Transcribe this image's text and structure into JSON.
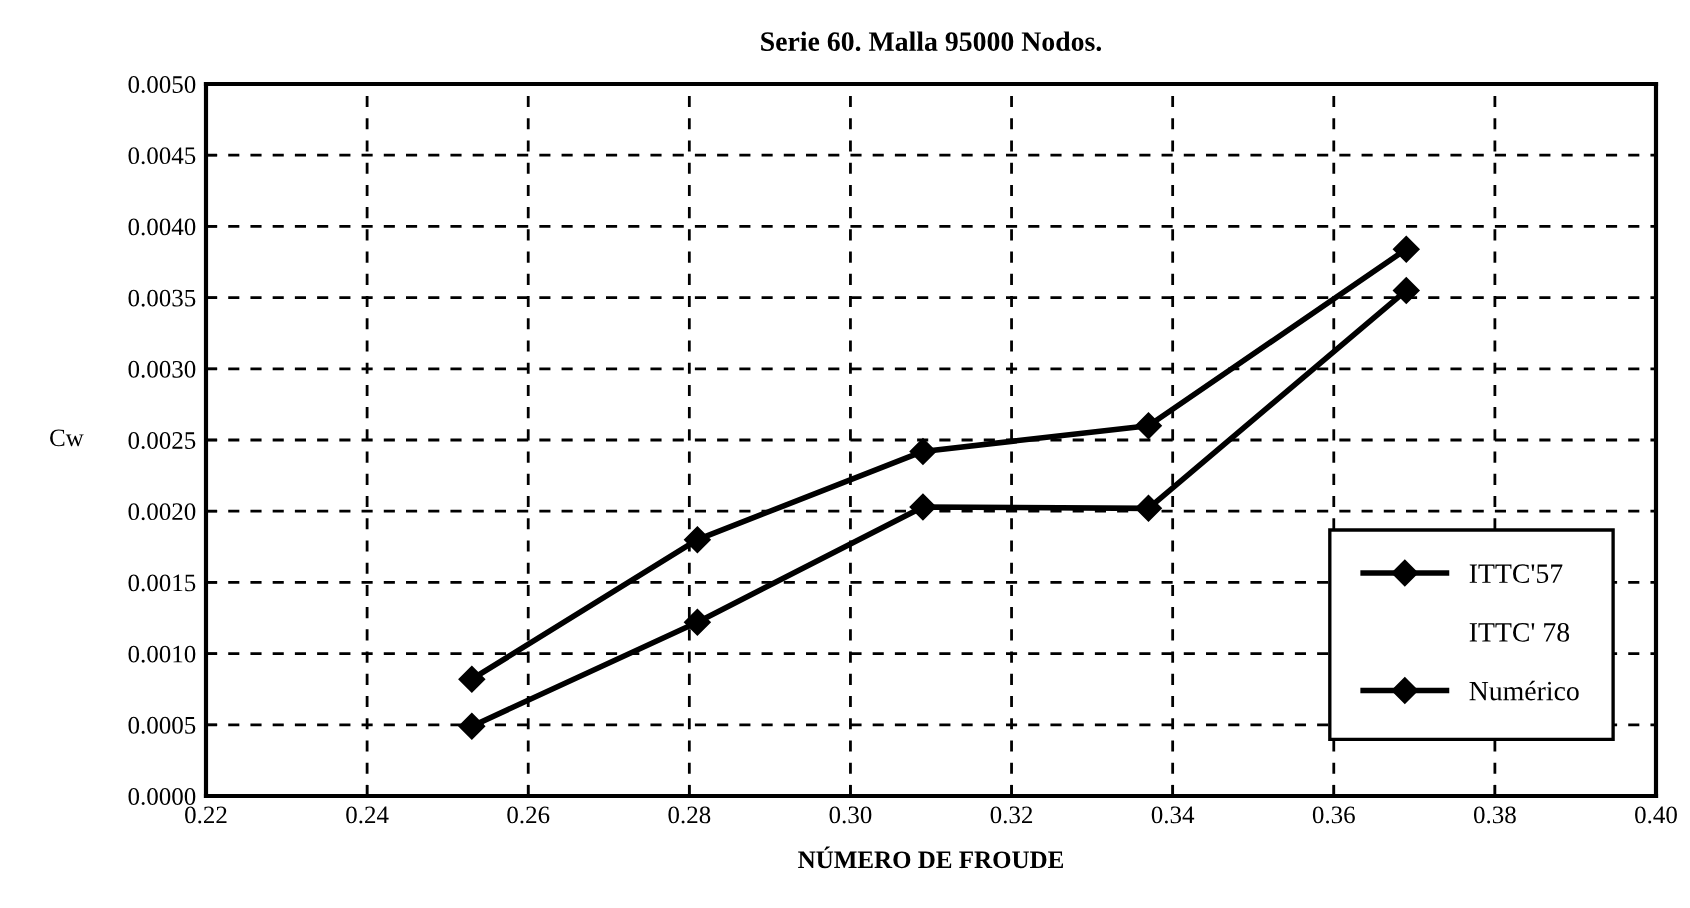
{
  "chart_data": {
    "type": "line",
    "title": "Serie 60. Malla 95000 Nodos.",
    "xlabel": "NÚMERO DE FROUDE",
    "ylabel": "Cw",
    "x": [
      0.253,
      0.281,
      0.309,
      0.337,
      0.369
    ],
    "series": [
      {
        "name": "ITTC'57",
        "color": "#000000",
        "values": [
          0.00082,
          0.0018,
          0.00242,
          0.0026,
          0.00384
        ]
      },
      {
        "name": "ITTC' 78",
        "values": [
          null,
          null,
          null,
          null,
          null
        ]
      },
      {
        "name": "Numérico",
        "color": "#000000",
        "values": [
          0.00049,
          0.00122,
          0.00203,
          0.00202,
          0.00355
        ]
      }
    ],
    "xlim": [
      0.22,
      0.4
    ],
    "xticks": [
      0.22,
      0.24,
      0.26,
      0.28,
      {
        "value": 0.3,
        "label": "0.30"
      },
      0.32,
      0.34,
      0.36,
      0.38,
      {
        "value": 0.4,
        "label": "0.40"
      }
    ],
    "ylim": [
      0,
      0.005
    ],
    "yticks": [
      {
        "value": 0,
        "label": "0.0000"
      },
      {
        "value": 0.0005,
        "label": "0.0005"
      },
      {
        "value": 0.001,
        "label": "0.0010"
      },
      {
        "value": 0.0015,
        "label": "0.0015"
      },
      {
        "value": 0.002,
        "label": "0.0020"
      },
      {
        "value": 0.0025,
        "label": "0.0025"
      },
      {
        "value": 0.003,
        "label": "0.0030"
      },
      {
        "value": 0.0035,
        "label": "0.0035"
      },
      {
        "value": 0.004,
        "label": "0.0040"
      },
      {
        "value": 0.0045,
        "label": "0.0045"
      },
      {
        "value": 0.005,
        "label": "0.0050"
      }
    ],
    "grid": true,
    "legend": "bottom right",
    "marker": "diamond",
    "line_style": "solid"
  }
}
